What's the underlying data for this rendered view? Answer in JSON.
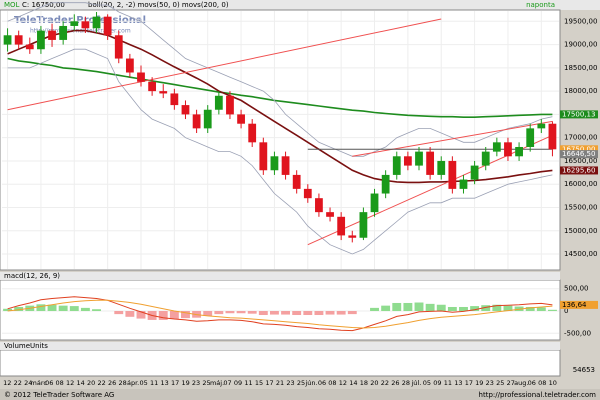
{
  "header": {
    "symbol": "MOL",
    "quote": "C: 16750,00",
    "indicators": "boll(20, 2, -2) movs(50, 0) movs(200, 0)",
    "period": "naponta"
  },
  "watermark": {
    "brand": "TeleTrader Professional",
    "url": "http://professional.teletrader.com"
  },
  "chart_data": [
    {
      "type": "candlestick",
      "open": [
        19000,
        19200,
        19000,
        18900,
        19300,
        19100,
        19400,
        19500,
        19350,
        19600,
        19200,
        18700,
        18400,
        18200,
        18000,
        17950,
        17700,
        17500,
        17200,
        17600,
        17900,
        17500,
        17300,
        16900,
        16300,
        16600,
        16200,
        15900,
        15700,
        15400,
        15300,
        14900,
        14850,
        15400,
        15800,
        16200,
        16600,
        16400,
        16700,
        16200,
        16500,
        15900,
        16100,
        16400,
        16700,
        16900,
        16600,
        16800,
        17200,
        17300
      ],
      "high": [
        19350,
        19300,
        19150,
        19400,
        19450,
        19500,
        19650,
        19600,
        19700,
        19650,
        19300,
        18800,
        18550,
        18300,
        18150,
        18050,
        17800,
        17600,
        17700,
        18000,
        18000,
        17600,
        17400,
        17000,
        16700,
        16700,
        16300,
        16000,
        15800,
        15500,
        15400,
        15000,
        15500,
        15900,
        16300,
        16700,
        16700,
        16800,
        16800,
        16600,
        16600,
        16200,
        16500,
        16800,
        17000,
        17000,
        16900,
        17300,
        17400,
        17350
      ],
      "low": [
        18850,
        18900,
        18800,
        18800,
        18950,
        19000,
        19300,
        19250,
        19250,
        19100,
        18600,
        18300,
        18100,
        17900,
        17850,
        17600,
        17400,
        17100,
        17100,
        17500,
        17400,
        17200,
        16800,
        16200,
        16200,
        16100,
        15800,
        15600,
        15300,
        15200,
        14800,
        14750,
        14800,
        15300,
        15700,
        16100,
        16300,
        16300,
        16100,
        16100,
        15800,
        15800,
        16000,
        16300,
        16600,
        16500,
        16500,
        16700,
        17100,
        16600
      ],
      "close": [
        19200,
        19000,
        18900,
        19300,
        19100,
        19400,
        19500,
        19350,
        19600,
        19200,
        18700,
        18400,
        18200,
        18000,
        17950,
        17700,
        17500,
        17200,
        17600,
        17900,
        17500,
        17300,
        16900,
        16300,
        16600,
        16200,
        15900,
        15700,
        15400,
        15300,
        14900,
        14850,
        15400,
        15800,
        16200,
        16600,
        16400,
        16700,
        16200,
        16500,
        15900,
        16100,
        16400,
        16700,
        16900,
        16600,
        16800,
        17200,
        17300,
        16750
      ],
      "up_color": "#1a9a1a",
      "down_color": "#e0141e",
      "series": [
        {
          "color": "#1e8c1e",
          "values": [
            18700,
            18650,
            18620,
            18580,
            18550,
            18500,
            18480,
            18450,
            18420,
            18380,
            18340,
            18300,
            18260,
            18220,
            18180,
            18140,
            18100,
            18060,
            18020,
            17980,
            17950,
            17910,
            17880,
            17840,
            17800,
            17770,
            17740,
            17710,
            17680,
            17650,
            17620,
            17590,
            17570,
            17540,
            17520,
            17500,
            17480,
            17470,
            17460,
            17450,
            17450,
            17440,
            17440,
            17450,
            17460,
            17470,
            17480,
            17490,
            17500,
            17500
          ]
        },
        {
          "color": "#7a1010",
          "values": [
            18800,
            18900,
            19000,
            19100,
            19200,
            19250,
            19300,
            19300,
            19250,
            19200,
            19100,
            19000,
            18900,
            18780,
            18650,
            18520,
            18400,
            18280,
            18150,
            18000,
            17900,
            17800,
            17650,
            17500,
            17350,
            17200,
            17050,
            16900,
            16750,
            16600,
            16450,
            16300,
            16200,
            16120,
            16080,
            16050,
            16040,
            16040,
            16050,
            16050,
            16060,
            16070,
            16080,
            16100,
            16130,
            16160,
            16200,
            16230,
            16270,
            16296
          ]
        },
        {
          "color": "#9aa0b4",
          "values": [
            19500,
            19600,
            19700,
            19800,
            19900,
            19900,
            19900,
            19900,
            19850,
            19850,
            19700,
            19600,
            19500,
            19300,
            19100,
            18900,
            18700,
            18600,
            18500,
            18400,
            18300,
            18200,
            18100,
            18000,
            17800,
            17500,
            17300,
            17100,
            16900,
            16800,
            16700,
            16600,
            16600,
            16700,
            16800,
            17000,
            17100,
            17200,
            17200,
            17100,
            17000,
            16900,
            16900,
            17000,
            17100,
            17200,
            17250,
            17300,
            17400,
            17450
          ]
        },
        {
          "color": "#9aa0b4",
          "values": [
            18500,
            18500,
            18500,
            18600,
            18700,
            18800,
            18900,
            18900,
            18800,
            18700,
            18200,
            17900,
            17600,
            17400,
            17300,
            17200,
            17000,
            16900,
            16800,
            16700,
            16700,
            16600,
            16400,
            16100,
            15800,
            15600,
            15400,
            15100,
            14900,
            14700,
            14600,
            14500,
            14600,
            14800,
            15000,
            15200,
            15400,
            15500,
            15600,
            15600,
            15700,
            15700,
            15700,
            15800,
            15900,
            16000,
            16050,
            16100,
            16150,
            16200
          ]
        }
      ],
      "trend_lines": [
        {
          "color": "#f05050",
          "x": [
            0,
            39
          ],
          "y": [
            17600,
            19550
          ]
        },
        {
          "color": "#f05050",
          "x": [
            27,
            49
          ],
          "y": [
            14700,
            17050
          ]
        },
        {
          "color": "#f05050",
          "x": [
            31,
            49
          ],
          "y": [
            16600,
            17350
          ]
        },
        {
          "color": "#555555",
          "x": [
            27,
            49
          ],
          "y": [
            16750,
            16750
          ]
        }
      ],
      "ylim": [
        14200,
        19700
      ],
      "yticks": [
        {
          "value": 14500,
          "label": "14500,00"
        },
        {
          "value": 15000,
          "label": "15000,00"
        },
        {
          "value": 15500,
          "label": "15500,00"
        },
        {
          "value": 16000,
          "label": "16000,00"
        },
        {
          "value": 16500,
          "label": "16500,00"
        },
        {
          "value": 17000,
          "label": "17000,00"
        },
        {
          "value": 17500,
          "label": "17500,00"
        },
        {
          "value": 18000,
          "label": "18000,00"
        },
        {
          "value": 18500,
          "label": "18500,00"
        },
        {
          "value": 19000,
          "label": "19000,00"
        },
        {
          "value": 19500,
          "label": "19500,00"
        }
      ],
      "price_labels": [
        {
          "value": 17500.13,
          "label": "17500,13",
          "color": "#1e8c1e"
        },
        {
          "value": 16750,
          "label": "16750,00",
          "color": "#f0a030"
        },
        {
          "value": 16646.5,
          "label": "16646,50",
          "color": "#808080"
        },
        {
          "value": 16295.6,
          "label": "16295,60",
          "color": "#7a1010"
        }
      ]
    },
    {
      "type": "macd",
      "title": "macd(12, 26, 9)",
      "hist": [
        50,
        90,
        120,
        150,
        140,
        120,
        110,
        70,
        40,
        0,
        -70,
        -130,
        -170,
        -200,
        -200,
        -180,
        -160,
        -150,
        -110,
        -70,
        -50,
        -50,
        -60,
        -90,
        -80,
        -80,
        -90,
        -90,
        -90,
        -80,
        -80,
        -70,
        0,
        70,
        120,
        180,
        180,
        190,
        160,
        140,
        90,
        90,
        110,
        130,
        140,
        120,
        100,
        90,
        80,
        27
      ],
      "series": [
        {
          "color": "#e04020",
          "values": [
            50,
            120,
            180,
            250,
            280,
            300,
            320,
            300,
            280,
            240,
            150,
            60,
            -20,
            -100,
            -150,
            -180,
            -200,
            -230,
            -220,
            -200,
            -200,
            -210,
            -240,
            -290,
            -300,
            -320,
            -350,
            -370,
            -400,
            -410,
            -430,
            -440,
            -380,
            -300,
            -220,
            -120,
            -80,
            -20,
            -10,
            0,
            -30,
            -10,
            30,
            80,
            120,
            130,
            140,
            160,
            170,
            137
          ]
        },
        {
          "color": "#f0a030",
          "values": [
            0,
            30,
            60,
            100,
            140,
            180,
            210,
            230,
            240,
            240,
            220,
            190,
            150,
            100,
            50,
            0,
            -40,
            -80,
            -110,
            -130,
            -150,
            -160,
            -180,
            -200,
            -220,
            -240,
            -260,
            -280,
            -310,
            -330,
            -350,
            -370,
            -380,
            -370,
            -340,
            -300,
            -260,
            -210,
            -170,
            -140,
            -120,
            -100,
            -80,
            -50,
            -20,
            10,
            40,
            70,
            90,
            110
          ]
        }
      ],
      "ylim": [
        -650,
        650
      ],
      "yticks": [
        {
          "value": 500,
          "label": "500,00"
        },
        0,
        {
          "value": -500,
          "label": "-500,00"
        }
      ],
      "last_label": {
        "value": 136.64,
        "label": "136,64"
      }
    },
    {
      "type": "volume",
      "title": "VolumeUnits",
      "last_label": "54653"
    }
  ],
  "x_labels": [
    "12",
    "22",
    "24",
    "márc",
    "06",
    "08",
    "12",
    "14",
    "20",
    "22",
    "26",
    "28",
    "ápr.",
    "05",
    "11",
    "13",
    "17",
    "19",
    "23",
    "25",
    "máj.",
    "07",
    "09",
    "11",
    "15",
    "17",
    "21",
    "23",
    "25",
    "jún.",
    "06",
    "08",
    "12",
    "14",
    "18",
    "20",
    "22",
    "26",
    "28",
    "júl.",
    "05",
    "09",
    "11",
    "13",
    "17",
    "19",
    "23",
    "25",
    "27",
    "aug.",
    "06",
    "08",
    "10"
  ],
  "footer": {
    "copyright": "© 2012 TeleTrader Software AG",
    "url": "http://professional.teletrader.com"
  }
}
